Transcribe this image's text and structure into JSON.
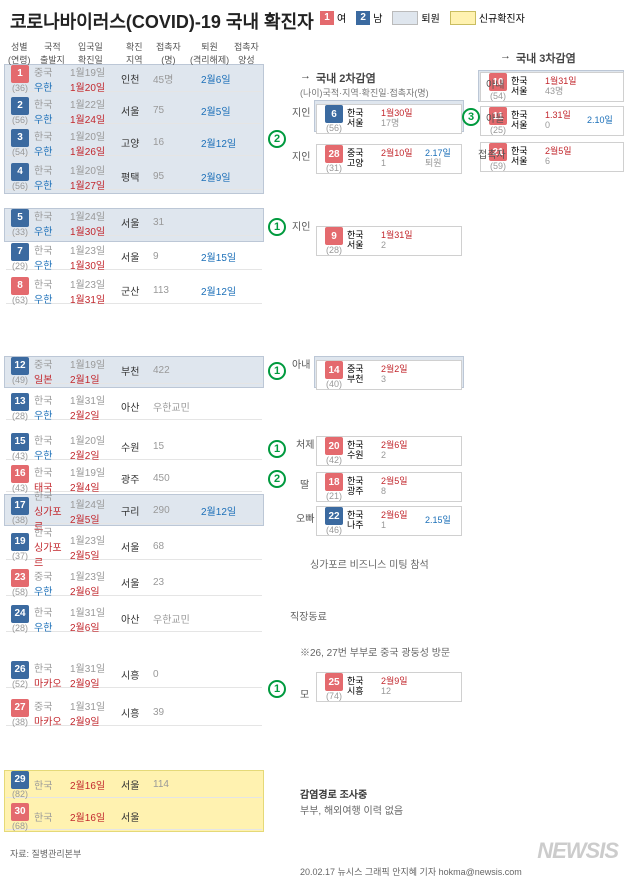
{
  "title": "코로나바이러스(COVID)-19 국내 확진자",
  "legend": {
    "female": {
      "num": "1",
      "label": "여",
      "color": "#e46a6e"
    },
    "male": {
      "num": "2",
      "label": "남",
      "color": "#3b6aa0"
    },
    "discharged": {
      "label": "퇴원",
      "color": "#dfe6ee"
    },
    "new": {
      "label": "신규확진자",
      "color": "#fff2b0"
    }
  },
  "headers": [
    "성별\n(연령)",
    "국적\n출발지",
    "입국일\n확진일",
    "확진\n지역",
    "접촉자\n(명)",
    "퇴원\n(격리해제)",
    "접촉자\n양성"
  ],
  "section2": {
    "title": "국내 2차감염",
    "sub": "(나이)국적·지역·확진일·접촉자(명)"
  },
  "section3": {
    "title": "국내 3차감염"
  },
  "rows": [
    {
      "n": "1",
      "sex": "f",
      "age": "(36)",
      "nat": "중국",
      "dep": "우한",
      "d1": "1월19일",
      "d2": "1월20일",
      "reg": "인천",
      "c": "45명",
      "dis": "2월6일"
    },
    {
      "n": "2",
      "sex": "m",
      "age": "(56)",
      "nat": "한국",
      "dep": "우한",
      "d1": "1월22일",
      "d2": "1월24일",
      "reg": "서울",
      "c": "75",
      "dis": "2월5일"
    },
    {
      "n": "3",
      "sex": "m",
      "age": "(54)",
      "nat": "한국",
      "dep": "우한",
      "d1": "1월20일",
      "d2": "1월26일",
      "reg": "고양",
      "c": "16",
      "dis": "2월12일"
    },
    {
      "n": "4",
      "sex": "m",
      "age": "(56)",
      "nat": "한국",
      "dep": "우한",
      "d1": "1월20일",
      "d2": "1월27일",
      "reg": "평택",
      "c": "95",
      "dis": "2월9일"
    },
    {
      "n": "5",
      "sex": "m",
      "age": "(33)",
      "nat": "한국",
      "dep": "우한",
      "d1": "1월24일",
      "d2": "1월30일",
      "reg": "서울",
      "c": "31",
      "dis": ""
    },
    {
      "n": "7",
      "sex": "m",
      "age": "(29)",
      "nat": "한국",
      "dep": "우한",
      "d1": "1월23일",
      "d2": "1월30일",
      "reg": "서울",
      "c": "9",
      "dis": "2월15일"
    },
    {
      "n": "8",
      "sex": "f",
      "age": "(63)",
      "nat": "한국",
      "dep": "우한",
      "d1": "1월23일",
      "d2": "1월31일",
      "reg": "군산",
      "c": "113",
      "dis": "2월12일"
    },
    {
      "n": "12",
      "sex": "m",
      "age": "(49)",
      "nat": "중국",
      "dep": "일본",
      "d1": "1월19일",
      "d2": "2월1일",
      "reg": "부천",
      "c": "422",
      "dis": ""
    },
    {
      "n": "13",
      "sex": "m",
      "age": "(28)",
      "nat": "한국",
      "dep": "우한",
      "d1": "1월31일",
      "d2": "2월2일",
      "reg": "아산",
      "c": "우한교민",
      "dis": ""
    },
    {
      "n": "15",
      "sex": "m",
      "age": "(43)",
      "nat": "한국",
      "dep": "우한",
      "d1": "1월20일",
      "d2": "2월2일",
      "reg": "수원",
      "c": "15",
      "dis": ""
    },
    {
      "n": "16",
      "sex": "f",
      "age": "(43)",
      "nat": "한국",
      "dep": "태국",
      "d1": "1월19일",
      "d2": "2월4일",
      "reg": "광주",
      "c": "450",
      "dis": ""
    },
    {
      "n": "17",
      "sex": "m",
      "age": "(38)",
      "nat": "한국",
      "dep": "싱가포르",
      "d1": "1월24일",
      "d2": "2월5일",
      "reg": "구리",
      "c": "290",
      "dis": "2월12일"
    },
    {
      "n": "19",
      "sex": "m",
      "age": "(37)",
      "nat": "한국",
      "dep": "싱가포르",
      "d1": "1월23일",
      "d2": "2월5일",
      "reg": "서울",
      "c": "68",
      "dis": ""
    },
    {
      "n": "23",
      "sex": "f",
      "age": "(58)",
      "nat": "중국",
      "dep": "우한",
      "d1": "1월23일",
      "d2": "2월6일",
      "reg": "서울",
      "c": "23",
      "dis": ""
    },
    {
      "n": "24",
      "sex": "m",
      "age": "(28)",
      "nat": "한국",
      "dep": "우한",
      "d1": "1월31일",
      "d2": "2월6일",
      "reg": "아산",
      "c": "우한교민",
      "dis": ""
    },
    {
      "n": "26",
      "sex": "m",
      "age": "(52)",
      "nat": "한국",
      "dep": "마카오",
      "d1": "1월31일",
      "d2": "2월9일",
      "reg": "시흥",
      "c": "0",
      "dis": ""
    },
    {
      "n": "27",
      "sex": "f",
      "age": "(38)",
      "nat": "중국",
      "dep": "마카오",
      "d1": "1월31일",
      "d2": "2월9일",
      "reg": "시흥",
      "c": "39",
      "dis": ""
    },
    {
      "n": "29",
      "sex": "m",
      "age": "(82)",
      "nat": "한국",
      "dep": "",
      "d1": "",
      "d2": "2월16일",
      "reg": "서울",
      "c": "114",
      "dis": ""
    },
    {
      "n": "30",
      "sex": "f",
      "age": "(68)",
      "nat": "한국",
      "dep": "",
      "d1": "",
      "d2": "2월16일",
      "reg": "서울",
      "c": "",
      "dis": ""
    }
  ],
  "sec2rows": [
    {
      "n": "6",
      "sex": "m",
      "age": "(56)",
      "nat": "한국",
      "reg": "서울",
      "d": "1월30일",
      "c": "17명"
    },
    {
      "n": "28",
      "sex": "f",
      "age": "(31)",
      "nat": "중국",
      "reg": "고양",
      "d": "2월10일",
      "dis": "2.17일",
      "c": "1",
      "ext": "퇴원"
    },
    {
      "n": "9",
      "sex": "f",
      "age": "(28)",
      "nat": "한국",
      "reg": "서울",
      "d": "1월31일",
      "c": "2"
    },
    {
      "n": "14",
      "sex": "f",
      "age": "(40)",
      "nat": "중국",
      "reg": "부천",
      "d": "2월2일",
      "c": "3"
    },
    {
      "n": "20",
      "sex": "f",
      "age": "(42)",
      "nat": "한국",
      "reg": "수원",
      "d": "2월6일",
      "c": "2"
    },
    {
      "n": "18",
      "sex": "f",
      "age": "(21)",
      "nat": "한국",
      "reg": "광주",
      "d": "2월5일",
      "c": "8"
    },
    {
      "n": "22",
      "sex": "m",
      "age": "(46)",
      "nat": "한국",
      "reg": "나주",
      "d": "2월6일",
      "dis": "2.15일",
      "c": "1"
    },
    {
      "n": "25",
      "sex": "f",
      "age": "(74)",
      "nat": "한국",
      "reg": "시흥",
      "d": "2월9일",
      "c": "12"
    }
  ],
  "sec3rows": [
    {
      "n": "10",
      "sex": "f",
      "age": "(54)",
      "nat": "한국",
      "reg": "서울",
      "d": "1월31일",
      "c": "43명"
    },
    {
      "n": "11",
      "sex": "f",
      "age": "(25)",
      "nat": "한국",
      "reg": "서울",
      "d": "1.31일",
      "dis": "2.10일",
      "c": "0"
    },
    {
      "n": "21",
      "sex": "f",
      "age": "(59)",
      "nat": "한국",
      "reg": "서울",
      "d": "2월5일",
      "c": "6"
    }
  ],
  "relations": {
    "r1": "지인",
    "r2": "지인",
    "r3": "지인",
    "r4": "아내",
    "r5": "처제",
    "r6": "딸",
    "r7": "오빠",
    "r8": "모",
    "r9": "아내",
    "r10": "아들",
    "r11": "접촉자"
  },
  "notes": {
    "singapore": "싱가포르 비즈니스 미팅 참석",
    "coworker": "직장동료",
    "couple": "※26, 27번 부부로 중국 광둥성 방문",
    "investigating": "감염경로 조사중",
    "investigating2": "부부, 해외여행 이력 없음"
  },
  "source": "자료: 질병관리본부",
  "credit": "20.02.17 뉴시스 그래픽 안지혜 기자  hokma@newsis.com",
  "logo": "NEWSIS",
  "colors": {
    "female": "#e46a6e",
    "male": "#3b6aa0",
    "green": "#009a3e",
    "gray": "#999",
    "red": "#c2272d",
    "blue": "#1b6fb8"
  }
}
